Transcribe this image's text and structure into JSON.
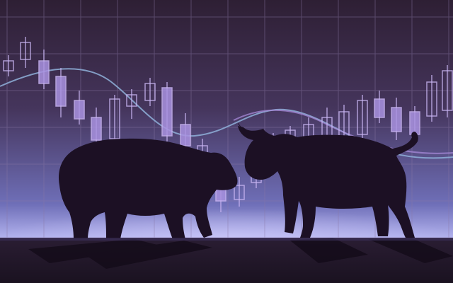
{
  "colors": {
    "sky_top": "#2e1f34",
    "sky_mid": "#45355c",
    "sky_low": "#6f6fb8",
    "horizon_glow": "#b7b7f2",
    "ground": "#1a1220",
    "grid": "#8a78a6",
    "candle_fill": "#a992e0",
    "candle_stroke": "#c9b5f2",
    "wave": "#8fb0d9",
    "wave_right": "#a78ad8",
    "silhouette": "#1c1024"
  },
  "icons": {
    "bear": "bear-silhouette",
    "bull": "bull-silhouette"
  }
}
